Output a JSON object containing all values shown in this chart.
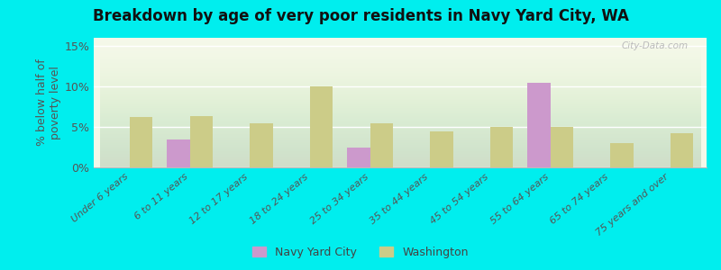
{
  "title": "Breakdown by age of very poor residents in Navy Yard City, WA",
  "ylabel": "% below half of\npoverty level",
  "categories": [
    "Under 6 years",
    "6 to 11 years",
    "12 to 17 years",
    "18 to 24 years",
    "25 to 34 years",
    "35 to 44 years",
    "45 to 54 years",
    "55 to 64 years",
    "65 to 74 years",
    "75 years and over"
  ],
  "navy_yard_city": [
    0,
    3.5,
    0,
    0,
    2.5,
    0,
    0,
    10.5,
    0,
    0
  ],
  "washington": [
    6.2,
    6.3,
    5.5,
    10.0,
    5.5,
    4.5,
    5.0,
    5.0,
    3.0,
    4.2
  ],
  "navy_yard_color": "#cc99cc",
  "washington_color": "#cccc88",
  "background_color": "#00eeee",
  "plot_bg_top": "#e8f0cc",
  "plot_bg_bottom": "#f5f8e8",
  "ylim": [
    0,
    16
  ],
  "yticks": [
    0,
    5,
    10,
    15
  ],
  "ytick_labels": [
    "0%",
    "5%",
    "10%",
    "15%"
  ],
  "bar_width": 0.38,
  "legend_navy": "Navy Yard City",
  "legend_washington": "Washington"
}
